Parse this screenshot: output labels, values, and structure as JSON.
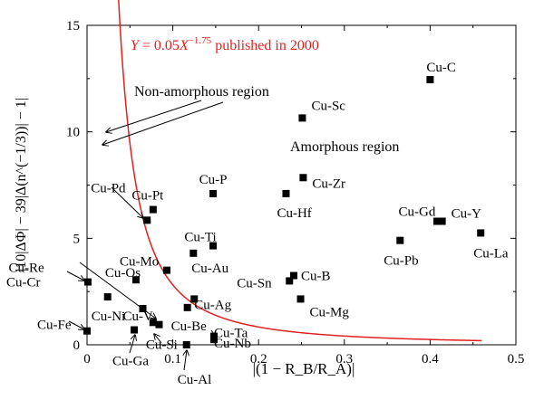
{
  "chart_data": {
    "type": "scatter",
    "xlabel": "|(1 − R_B/R_A)|",
    "ylabel": "|10|ΔΦ| − 39|Δ(n^(−1/3))| − 1|",
    "xlim": [
      0,
      0.5
    ],
    "ylim": [
      0,
      15
    ],
    "x_ticks": [
      "0",
      "0.1",
      "0.2",
      "0.3",
      "0.4",
      "0.5"
    ],
    "y_ticks": [
      "0",
      "5",
      "10",
      "15"
    ],
    "grid": false,
    "points": [
      {
        "label": "Cu-C",
        "x": 0.4,
        "y": 12.45
      },
      {
        "label": "Cu-Sc",
        "x": 0.251,
        "y": 10.65
      },
      {
        "label": "Cu-Zr",
        "x": 0.252,
        "y": 7.85
      },
      {
        "label": "Cu-Hf",
        "x": 0.232,
        "y": 7.1
      },
      {
        "label": "Cu-P",
        "x": 0.147,
        "y": 7.1
      },
      {
        "label": "Cu-Pt",
        "x": 0.077,
        "y": 6.35
      },
      {
        "label": "Cu-Pd",
        "x": 0.07,
        "y": 5.85
      },
      {
        "label": "Cu-Gd",
        "x": 0.408,
        "y": 5.8
      },
      {
        "label": "Cu-Y",
        "x": 0.414,
        "y": 5.8
      },
      {
        "label": "Cu-La",
        "x": 0.459,
        "y": 5.25
      },
      {
        "label": "Cu-Pb",
        "x": 0.365,
        "y": 4.9
      },
      {
        "label": "Cu-Ti",
        "x": 0.147,
        "y": 4.65
      },
      {
        "label": "Cu-Au",
        "x": 0.124,
        "y": 4.3
      },
      {
        "label": "Cu-Mo",
        "x": 0.093,
        "y": 3.5
      },
      {
        "label": "Cu-B",
        "x": 0.241,
        "y": 3.25
      },
      {
        "label": "Cu-Sn",
        "x": 0.236,
        "y": 3.0
      },
      {
        "label": "Cu-Os",
        "x": 0.057,
        "y": 3.05
      },
      {
        "label": "Cu-Cr",
        "x": 0.001,
        "y": 2.95
      },
      {
        "label": "Cu-Ni",
        "x": 0.024,
        "y": 2.25
      },
      {
        "label": "Cu-Mg",
        "x": 0.249,
        "y": 2.15
      },
      {
        "label": "Cu-Ag",
        "x": 0.125,
        "y": 2.15
      },
      {
        "label": "Cu-Be",
        "x": 0.117,
        "y": 1.75
      },
      {
        "label": "Cu-V",
        "x": 0.065,
        "y": 1.7
      },
      {
        "label": "Cu-Si",
        "x": 0.077,
        "y": 1.05
      },
      {
        "label": "Cu-Re",
        "x": 0.084,
        "y": 0.95
      },
      {
        "label": "Cu-Ga",
        "x": 0.055,
        "y": 0.7
      },
      {
        "label": "Cu-Fe",
        "x": 0.0,
        "y": 0.65
      },
      {
        "label": "Cu-Ta",
        "x": 0.148,
        "y": 0.4
      },
      {
        "label": "Cu-Nb",
        "x": 0.148,
        "y": 0.25
      },
      {
        "label": "Cu-Al",
        "x": 0.116,
        "y": 0.0
      }
    ],
    "curve": {
      "label_parts": [
        "Y",
        " = 0.05",
        "X",
        "−1.75",
        " published in 2000"
      ],
      "a": 0.05,
      "b": -1.75,
      "x_range": [
        0.036,
        0.46
      ],
      "color": "#e02020"
    },
    "annotations": {
      "non_amorphous": "Non-amorphous region",
      "amorphous": "Amorphous region"
    }
  },
  "colors": {
    "axis": "#000000",
    "marker": "#000000",
    "curve": "#e02020"
  }
}
